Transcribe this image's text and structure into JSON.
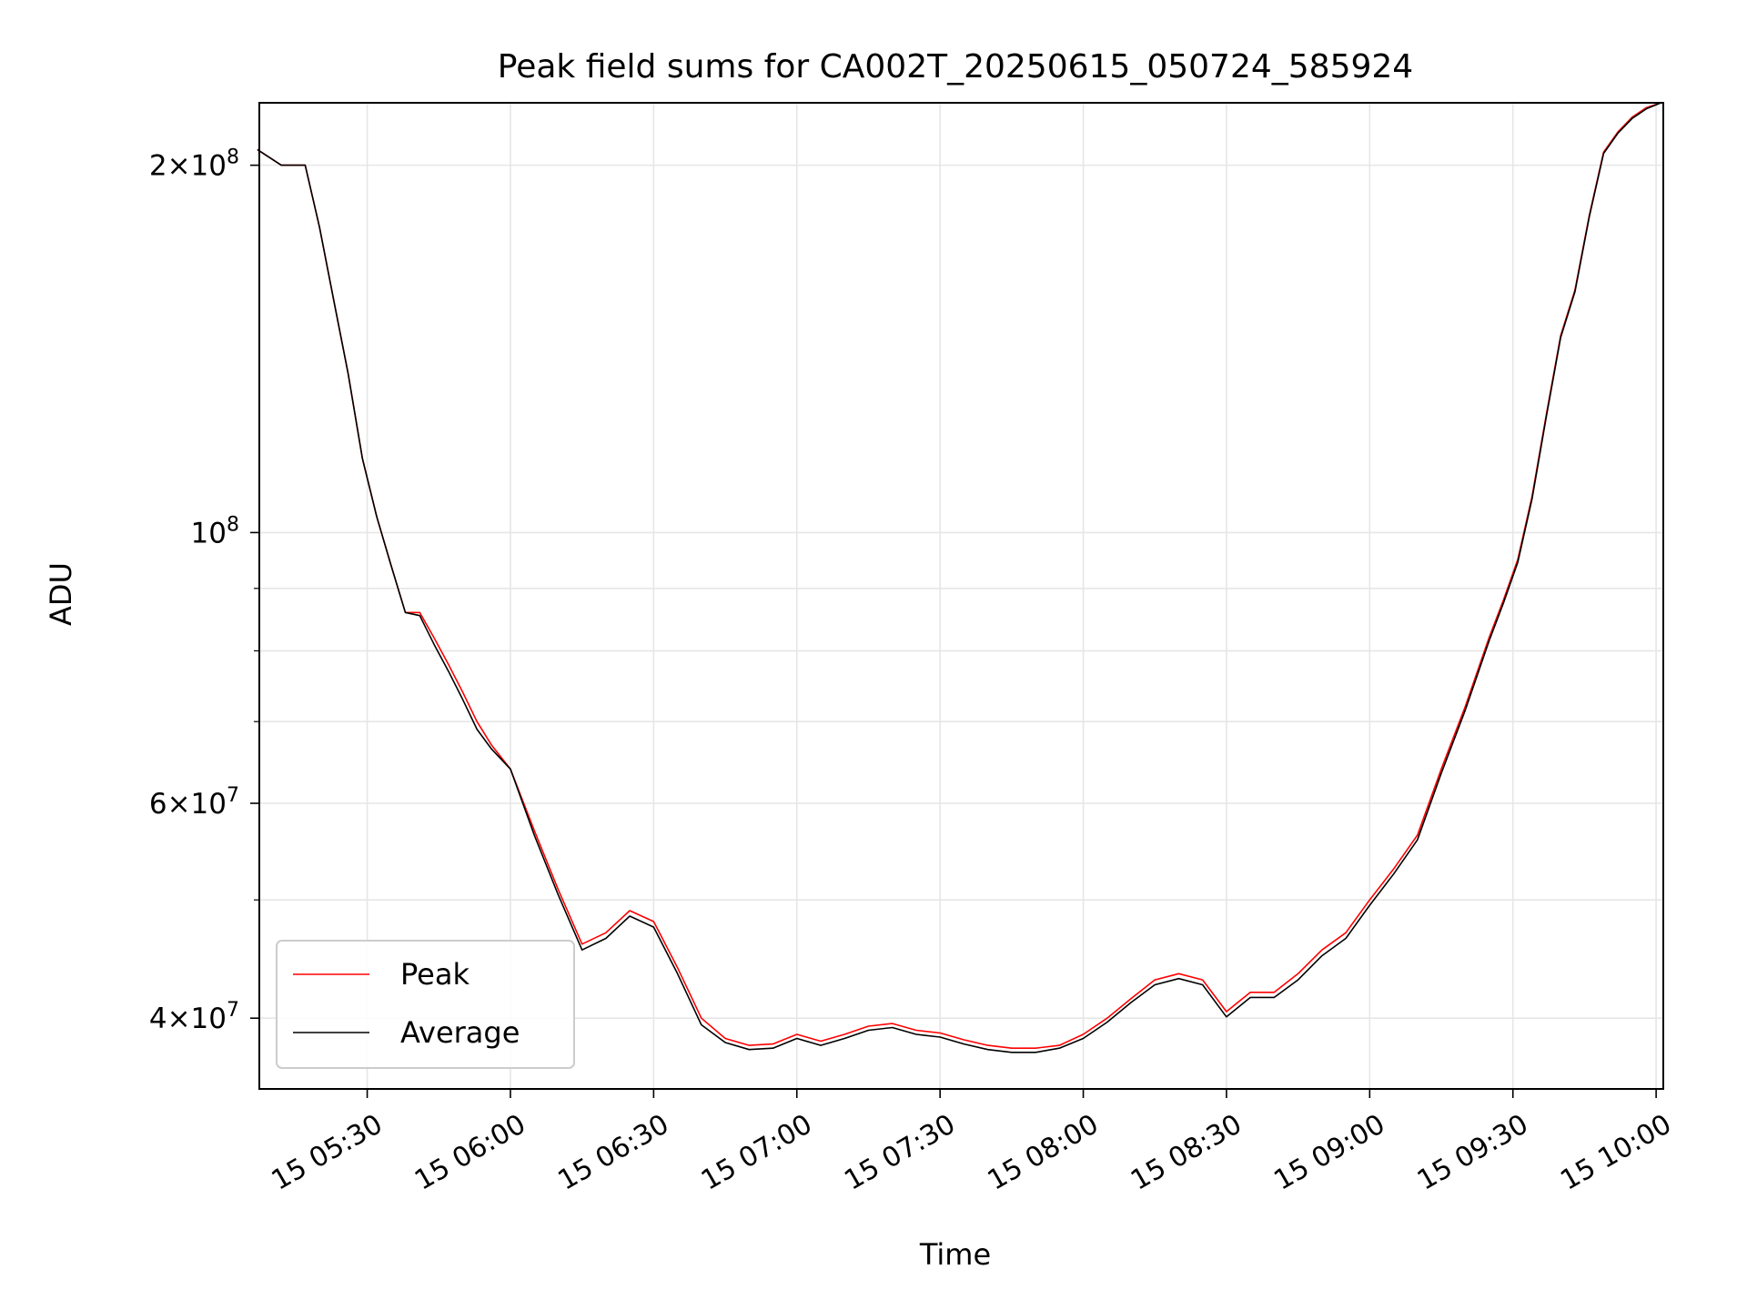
{
  "chart_data": {
    "type": "line",
    "title": "Peak field sums for CA002T_20250615_050724_585924",
    "xlabel": "Time",
    "ylabel": "ADU",
    "yscale": "log",
    "grid": true,
    "legend_position": "lower-left",
    "xlim": [
      "2025-06-15 05:07:24",
      "2025-06-15 10:01:30"
    ],
    "ylim": [
      35000000,
      225000000
    ],
    "x_ticks": [
      "15 05:30",
      "15 06:00",
      "15 06:30",
      "15 07:00",
      "15 07:30",
      "15 08:00",
      "15 08:30",
      "15 09:00",
      "15 09:30",
      "15 10:00"
    ],
    "y_ticks": [
      {
        "value": 200000000,
        "mantissa": "2",
        "exponent": "8"
      },
      {
        "value": 100000000,
        "mantissa": "",
        "exponent": "8"
      },
      {
        "value": 60000000,
        "mantissa": "6",
        "exponent": "7"
      },
      {
        "value": 40000000,
        "mantissa": "4",
        "exponent": "7"
      }
    ],
    "x": [
      "05:07",
      "05:12",
      "05:17",
      "05:20",
      "05:23",
      "05:26",
      "05:29",
      "05:32",
      "05:35",
      "05:38",
      "05:41",
      "05:44",
      "05:47",
      "05:50",
      "05:53",
      "05:56",
      "06:00",
      "06:05",
      "06:10",
      "06:15",
      "06:20",
      "06:25",
      "06:30",
      "06:35",
      "06:40",
      "06:45",
      "06:50",
      "06:55",
      "07:00",
      "07:05",
      "07:10",
      "07:15",
      "07:20",
      "07:25",
      "07:30",
      "07:35",
      "07:40",
      "07:45",
      "07:50",
      "07:55",
      "08:00",
      "08:05",
      "08:10",
      "08:15",
      "08:20",
      "08:25",
      "08:30",
      "08:35",
      "08:40",
      "08:45",
      "08:50",
      "08:55",
      "09:00",
      "09:05",
      "09:10",
      "09:15",
      "09:20",
      "09:25",
      "09:28",
      "09:31",
      "09:34",
      "09:37",
      "09:40",
      "09:43",
      "09:46",
      "09:49",
      "09:52",
      "09:55",
      "09:58",
      "10:01"
    ],
    "series": [
      {
        "name": "Peak",
        "color": "#ff0000",
        "values": [
          206000000,
          200000000,
          200000000,
          178000000,
          155000000,
          135000000,
          115000000,
          103000000,
          94000000,
          86000000,
          86000000,
          82000000,
          78000000,
          74000000,
          70000000,
          67000000,
          64000000,
          57000000,
          51000000,
          46000000,
          47000000,
          49000000,
          48000000,
          44000000,
          40000000,
          38500000,
          38000000,
          38100000,
          38800000,
          38300000,
          38800000,
          39400000,
          39600000,
          39100000,
          38900000,
          38400000,
          38000000,
          37800000,
          37800000,
          38000000,
          38800000,
          40000000,
          41500000,
          43000000,
          43500000,
          43000000,
          40500000,
          42000000,
          42000000,
          43500000,
          45500000,
          47000000,
          50000000,
          53000000,
          56500000,
          64000000,
          72000000,
          82000000,
          88000000,
          95000000,
          107000000,
          125000000,
          145000000,
          158000000,
          182000000,
          205000000,
          213000000,
          219000000,
          223000000,
          225000000
        ]
      },
      {
        "name": "Average",
        "color": "#000000",
        "values": [
          206000000,
          200000000,
          200000000,
          178000000,
          155000000,
          135000000,
          115000000,
          103000000,
          94000000,
          86000000,
          85500000,
          81000000,
          77000000,
          73000000,
          69000000,
          66500000,
          64000000,
          56500000,
          50500000,
          45500000,
          46500000,
          48500000,
          47500000,
          43500000,
          39500000,
          38200000,
          37700000,
          37800000,
          38500000,
          38000000,
          38500000,
          39100000,
          39300000,
          38800000,
          38600000,
          38100000,
          37700000,
          37500000,
          37500000,
          37800000,
          38500000,
          39700000,
          41200000,
          42600000,
          43100000,
          42600000,
          40100000,
          41600000,
          41600000,
          43000000,
          45000000,
          46500000,
          49500000,
          52500000,
          56000000,
          63500000,
          71500000,
          81500000,
          87500000,
          94500000,
          106500000,
          124500000,
          144500000,
          157500000,
          181500000,
          204500000,
          212500000,
          218500000,
          222500000,
          225000000
        ]
      }
    ]
  }
}
